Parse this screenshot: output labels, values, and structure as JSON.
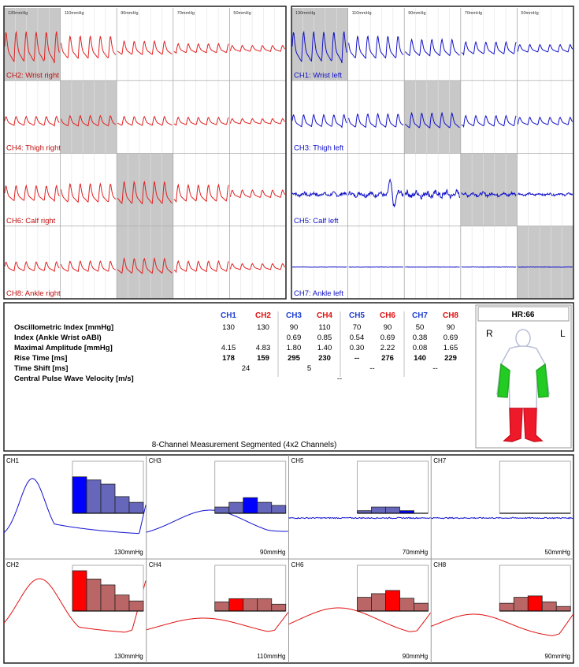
{
  "waveforms": {
    "left": {
      "pressures": [
        "130mmHg",
        "110mmHg",
        "90mmHg",
        "70mmHg",
        "50mmHg"
      ],
      "channels": [
        {
          "label": "CH2: Wrist right",
          "selected": 0
        },
        {
          "label": "CH4: Thigh right",
          "selected": 1
        },
        {
          "label": "CH6: Calf right",
          "selected": 2
        },
        {
          "label": "CH8: Ankle right",
          "selected": 2
        }
      ],
      "wave_color": "#e02020",
      "label_color": "#c01010"
    },
    "right": {
      "pressures": [
        "130mmHg",
        "110mmHg",
        "90mmHg",
        "70mmHg",
        "50mmHg"
      ],
      "channels": [
        {
          "label": "CH1: Wrist left",
          "selected": 0
        },
        {
          "label": "CH3: Thigh left",
          "selected": 2
        },
        {
          "label": "CH5: Calf left",
          "selected": 3
        },
        {
          "label": "CH7: Ankle left",
          "selected": 4
        }
      ],
      "wave_color": "#1010c8",
      "label_color": "#1010c8"
    }
  },
  "table": {
    "columns": [
      {
        "name": "CH1",
        "color": "#1f3fd0"
      },
      {
        "name": "CH2",
        "color": "#e01010"
      },
      {
        "name": "CH3",
        "color": "#1f3fd0"
      },
      {
        "name": "CH4",
        "color": "#e01010"
      },
      {
        "name": "CH5",
        "color": "#1f3fd0"
      },
      {
        "name": "CH6",
        "color": "#e01010"
      },
      {
        "name": "CH7",
        "color": "#1f3fd0"
      },
      {
        "name": "CH8",
        "color": "#e01010"
      }
    ],
    "rows": [
      {
        "label": "Oscillometric Index [mmHg]",
        "cells": [
          "130",
          "130",
          "90",
          "110",
          "70",
          "90",
          "50",
          "90"
        ]
      },
      {
        "label": "Index (Ankle Wrist oABI)",
        "cells": [
          null,
          null,
          "0.69",
          "0.85",
          "0.54",
          "0.69",
          "0.38",
          "0.69"
        ]
      },
      {
        "label": "Maximal Amplitude [mmHg]",
        "cells": [
          "4.15",
          "4.83",
          "1.80",
          "1.40",
          "0.30",
          "2.22",
          "0.08",
          "1.65"
        ]
      },
      {
        "label": "Rise Time [ms]",
        "bold": true,
        "cells": [
          "178",
          "159",
          "295",
          "230",
          "--",
          "276",
          "140",
          "229"
        ]
      },
      {
        "label": "Time Shift [ms]",
        "span": 2,
        "cells": [
          "24",
          "5",
          "--",
          "--"
        ]
      },
      {
        "label": "Central Pulse Wave Velocity [m/s]",
        "span": 8,
        "cells": [
          "--"
        ]
      }
    ],
    "caption": "8-Channel Measurement Segmented (4x2 Channels)"
  },
  "body": {
    "hr": "HR:66",
    "right": "R",
    "left": "L"
  },
  "cells": [
    {
      "name": "CH1",
      "pressure": "130mmHg",
      "bars": [
        70,
        64,
        56,
        32,
        21
      ],
      "highlight": 0,
      "color": "#1010d0",
      "bar_color": "#0000ff",
      "other_color": "#6666bb"
    },
    {
      "name": "CH3",
      "pressure": "90mmHg",
      "bars": [
        12,
        21,
        30,
        21,
        15
      ],
      "highlight": 2,
      "color": "#1010d0",
      "bar_color": "#0000ff",
      "other_color": "#6666bb"
    },
    {
      "name": "CH5",
      "pressure": "70mmHg",
      "bars": [
        5,
        12,
        12,
        5,
        0
      ],
      "highlight": 3,
      "color": "#1010d0",
      "bar_color": "#0000ff",
      "other_color": "#6666bb"
    },
    {
      "name": "CH7",
      "pressure": "50mmHg",
      "bars": [
        0,
        0,
        0,
        0,
        0
      ],
      "highlight": 4,
      "color": "#1010d0",
      "bar_color": "#0000ff",
      "other_color": "#6666bb"
    },
    {
      "name": "CH2",
      "pressure": "130mmHg",
      "bars": [
        88,
        70,
        57,
        35,
        22
      ],
      "highlight": 0,
      "color": "#e01010",
      "bar_color": "#ff0000",
      "other_color": "#bb6666"
    },
    {
      "name": "CH4",
      "pressure": "110mmHg",
      "bars": [
        20,
        27,
        27,
        27,
        15
      ],
      "highlight": 1,
      "color": "#e01010",
      "bar_color": "#ff0000",
      "other_color": "#bb6666"
    },
    {
      "name": "CH6",
      "pressure": "90mmHg",
      "bars": [
        30,
        38,
        45,
        28,
        17
      ],
      "highlight": 2,
      "color": "#e01010",
      "bar_color": "#ff0000",
      "other_color": "#bb6666"
    },
    {
      "name": "CH8",
      "pressure": "90mmHg",
      "bars": [
        17,
        30,
        33,
        20,
        10
      ],
      "highlight": 2,
      "color": "#e01010",
      "bar_color": "#ff0000",
      "other_color": "#bb6666"
    }
  ]
}
